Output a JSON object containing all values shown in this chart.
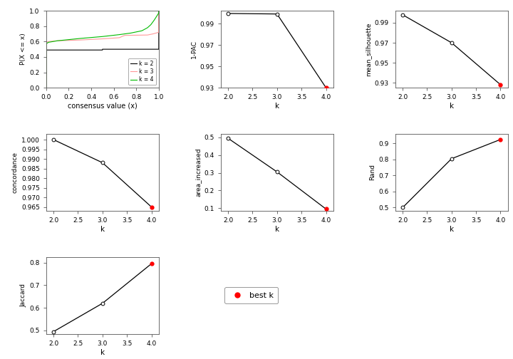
{
  "pac": {
    "k": [
      2,
      3,
      4
    ],
    "y": [
      0.9995,
      0.999,
      0.93
    ],
    "best_k": 4,
    "ylabel": "1-PAC",
    "ylim": [
      0.93,
      1.002
    ],
    "yticks": [
      0.93,
      0.95,
      0.97,
      0.99
    ]
  },
  "silhouette": {
    "k": [
      2,
      3,
      4
    ],
    "y": [
      0.998,
      0.97,
      0.928
    ],
    "best_k": 4,
    "ylabel": "mean_silhouette",
    "ylim": [
      0.925,
      1.002
    ],
    "yticks": [
      0.93,
      0.95,
      0.97,
      0.99
    ]
  },
  "concordance": {
    "k": [
      2,
      3,
      4
    ],
    "y": [
      1.0,
      0.988,
      0.965
    ],
    "best_k": 4,
    "ylabel": "concordance",
    "ylim": [
      0.963,
      1.003
    ],
    "yticks": [
      0.965,
      0.97,
      0.975,
      0.98,
      0.985,
      0.99,
      0.995,
      1.0
    ]
  },
  "area_increased": {
    "k": [
      2,
      3,
      4
    ],
    "y": [
      0.495,
      0.305,
      0.095
    ],
    "best_k": 4,
    "ylabel": "area_increased",
    "ylim": [
      0.085,
      0.52
    ],
    "yticks": [
      0.1,
      0.2,
      0.3,
      0.4,
      0.5
    ]
  },
  "rand": {
    "k": [
      2,
      3,
      4
    ],
    "y": [
      0.5,
      0.805,
      0.925
    ],
    "best_k": 4,
    "ylabel": "Rand",
    "ylim": [
      0.48,
      0.96
    ],
    "yticks": [
      0.5,
      0.6,
      0.7,
      0.8,
      0.9
    ]
  },
  "jaccard": {
    "k": [
      2,
      3,
      4
    ],
    "y": [
      0.495,
      0.62,
      0.795
    ],
    "best_k": 4,
    "ylabel": "Jaccard",
    "ylim": [
      0.485,
      0.825
    ],
    "yticks": [
      0.5,
      0.6,
      0.7,
      0.8
    ]
  },
  "xlabel": "k",
  "k_xlim": [
    1.85,
    4.15
  ],
  "k_xticks": [
    2.0,
    2.5,
    3.0,
    3.5,
    4.0
  ],
  "line_color": "#000000",
  "bg_color": "#FFFFFF",
  "panel_bg": "#EBEBEB",
  "best_k_label": "best k",
  "ecdf_ylabel": "P(X <= x)",
  "ecdf_xlabel": "consensus value (x)",
  "legend_labels": [
    "k = 2",
    "k = 3",
    "k = 4"
  ],
  "legend_colors": [
    "#000000",
    "#FF9999",
    "#00BB00"
  ]
}
